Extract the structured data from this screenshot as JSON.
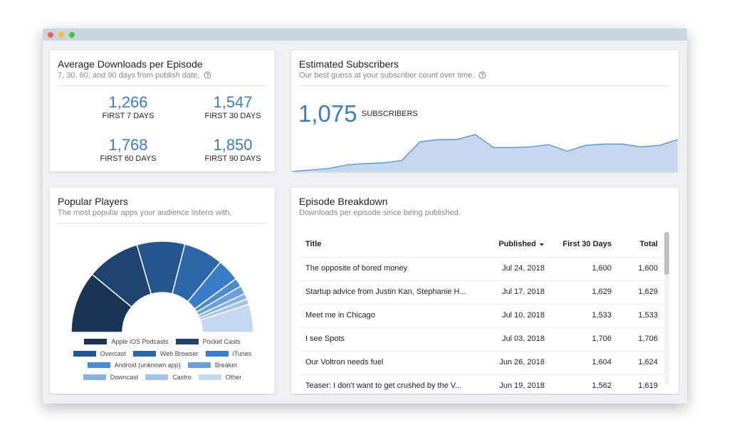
{
  "downloads_card": {
    "title": "Average Downloads per Episode",
    "subtitle": "7, 30, 60, and 90 days from publish date.",
    "stats": [
      {
        "value": "1,266",
        "label": "FIRST 7 DAYS"
      },
      {
        "value": "1,547",
        "label": "FIRST 30 DAYS"
      },
      {
        "value": "1,768",
        "label": "FIRST 60 DAYS"
      },
      {
        "value": "1,850",
        "label": "FIRST 90 DAYS"
      }
    ]
  },
  "subscribers_card": {
    "title": "Estimated Subscribers",
    "subtitle": "Our best guess at your subscriber count over time.",
    "count": "1,075",
    "count_label": "SUBSCRIBERS"
  },
  "players_card": {
    "title": "Popular Players",
    "subtitle": "The most popular apps your audience listens with."
  },
  "episodes_card": {
    "title": "Episode Breakdown",
    "subtitle": "Downloads per episode since being published.",
    "table": {
      "header": [
        "Title",
        "Published",
        "First 30 Days",
        "Total"
      ],
      "rows": [
        [
          "The opposite of bored money",
          "Jul 24, 2018",
          "1,600",
          "1,600"
        ],
        [
          "Startup advice from Justin Kan, Stephanie H...",
          "Jul 17, 2018",
          "1,629",
          "1,629"
        ],
        [
          "Meet me in Chicago",
          "Jul 10, 2018",
          "1,533",
          "1,533"
        ],
        [
          "I see Spots",
          "Jul 03, 2018",
          "1,706",
          "1,706"
        ],
        [
          "Our Voltron needs fuel",
          "Jun 26, 2018",
          "1,604",
          "1,624"
        ],
        [
          "Teaser: I don't want to get crushed by the V...",
          "Jun 19, 2018",
          "1,562",
          "1,619"
        ]
      ]
    }
  },
  "chart_data": [
    {
      "type": "area",
      "color": "#c5d7ef",
      "line_color": "#4a86cf",
      "values": [
        0,
        50,
        100,
        220,
        270,
        290,
        370,
        1000,
        1075,
        1075,
        1245,
        805,
        805,
        830,
        905,
        685,
        880,
        925,
        925,
        830,
        880,
        1075
      ]
    },
    {
      "type": "pie",
      "categories": [
        "Apple iOS Podcasts",
        "Pocket Casts",
        "Overcast",
        "Web Browser",
        "iTunes",
        "Android (unknown app)",
        "Breaker",
        "Downcast",
        "Castro",
        "Other"
      ],
      "values": [
        22,
        19,
        17,
        14,
        8,
        3,
        3,
        2,
        2,
        10
      ],
      "colors": [
        "#1b3556",
        "#1f4470",
        "#24568d",
        "#2b67a9",
        "#3b7cc9",
        "#4d8bd1",
        "#6b9fd8",
        "#87b1df",
        "#a4c4e8",
        "#c4d8ef"
      ]
    }
  ]
}
